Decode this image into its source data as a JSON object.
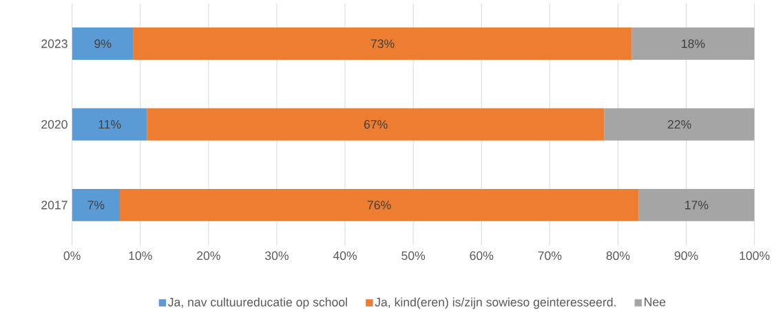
{
  "chart_data": {
    "type": "bar",
    "orientation": "horizontal",
    "stacked": true,
    "categories": [
      "2023",
      "2020",
      "2017"
    ],
    "series": [
      {
        "name": "Ja, nav cultuureducatie op school",
        "color": "#5b9bd5",
        "values": [
          9,
          11,
          7
        ],
        "value_labels": [
          "9%",
          "11%",
          "7%"
        ]
      },
      {
        "name": "Ja, kind(eren) is/zijn sowieso geinteresseerd.",
        "color": "#ed7d31",
        "values": [
          73,
          67,
          76
        ],
        "value_labels": [
          "73%",
          "67%",
          "76%"
        ]
      },
      {
        "name": "Nee",
        "color": "#a5a5a5",
        "values": [
          18,
          22,
          17
        ],
        "value_labels": [
          "18%",
          "22%",
          "17%"
        ]
      }
    ],
    "xlim": [
      0,
      100
    ],
    "xticks": [
      {
        "value": 0,
        "label": "0%"
      },
      {
        "value": 10,
        "label": "10%"
      },
      {
        "value": 20,
        "label": "20%"
      },
      {
        "value": 30,
        "label": "30%"
      },
      {
        "value": 40,
        "label": "40%"
      },
      {
        "value": 50,
        "label": "50%"
      },
      {
        "value": 60,
        "label": "60%"
      },
      {
        "value": 70,
        "label": "70%"
      },
      {
        "value": 80,
        "label": "80%"
      },
      {
        "value": 90,
        "label": "90%"
      },
      {
        "value": 100,
        "label": "100%"
      }
    ],
    "grid": "x",
    "legend": "bottom"
  }
}
